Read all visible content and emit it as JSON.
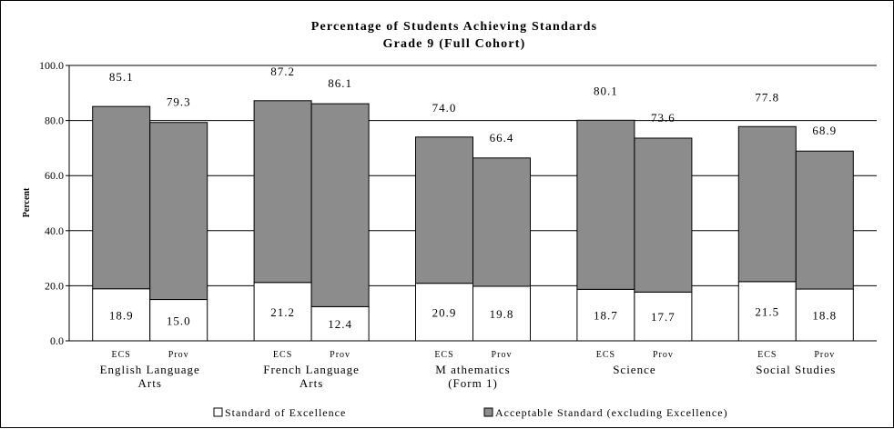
{
  "chart_data": {
    "type": "bar",
    "stacked": true,
    "title": "Percentage of Students Achieving Standards",
    "subtitle": "Grade 9 (Full Cohort)",
    "ylabel": "Percent",
    "ylim": [
      0,
      100
    ],
    "yticks": [
      "0.0",
      "20.0",
      "40.0",
      "60.0",
      "80.0",
      "100.0"
    ],
    "grid": true,
    "legend_position": "bottom",
    "categories": [
      {
        "name": "English Language Arts",
        "lines": [
          "English Language",
          "Arts"
        ]
      },
      {
        "name": "French Language Arts",
        "lines": [
          "French Language",
          "Arts"
        ]
      },
      {
        "name": "Mathematics (Form 1)",
        "lines": [
          "M athematics",
          "(Form 1)"
        ]
      },
      {
        "name": "Science",
        "lines": [
          "Science"
        ]
      },
      {
        "name": "Social Studies",
        "lines": [
          "Social Studies"
        ]
      }
    ],
    "groups": [
      "ECS",
      "Prov"
    ],
    "series": [
      {
        "name": "Standard of Excellence",
        "color": "#ffffff",
        "values": [
          [
            18.9,
            15.0
          ],
          [
            21.2,
            12.4
          ],
          [
            20.9,
            19.8
          ],
          [
            18.7,
            17.7
          ],
          [
            21.5,
            18.8
          ]
        ]
      },
      {
        "name": "Acceptable Standard (excluding Excellence)",
        "color": "#8c8c8c",
        "totals": [
          [
            85.1,
            79.3
          ],
          [
            87.2,
            86.1
          ],
          [
            74.0,
            66.4
          ],
          [
            80.1,
            73.6
          ],
          [
            77.8,
            68.9
          ]
        ]
      }
    ],
    "total_labels": [
      [
        "85.1",
        "79.3"
      ],
      [
        "87.2",
        "86.1"
      ],
      [
        "74.0",
        "66.4"
      ],
      [
        "80.1",
        "73.6"
      ],
      [
        "77.8",
        "68.9"
      ]
    ],
    "excellence_labels": [
      [
        "18.9",
        "15.0"
      ],
      [
        "21.2",
        "12.4"
      ],
      [
        "20.9",
        "19.8"
      ],
      [
        "18.7",
        "17.7"
      ],
      [
        "21.5",
        "18.8"
      ]
    ]
  }
}
